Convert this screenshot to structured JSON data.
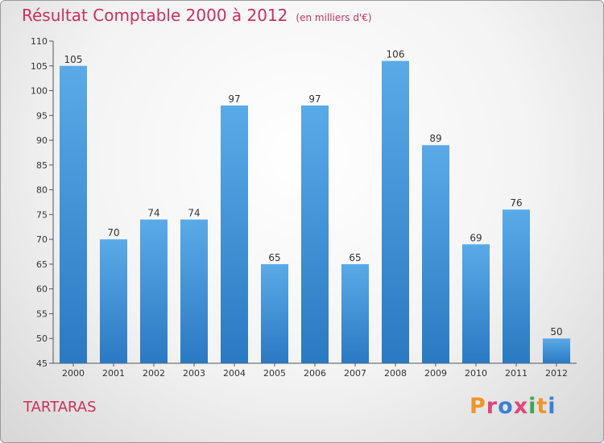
{
  "header": {
    "title": "Résultat Comptable 2000 à 2012",
    "subtitle": "(en milliers d'€)"
  },
  "footer": {
    "place": "TARTARAS",
    "logo": "Proxiti",
    "logo_colors": [
      "#f0932b",
      "#e0457b",
      "#3a7fd5",
      "#e0457b",
      "#3aa655",
      "#f0932b",
      "#3a7fd5"
    ]
  },
  "chart_data": {
    "type": "bar",
    "categories": [
      "2000",
      "2001",
      "2002",
      "2003",
      "2004",
      "2005",
      "2006",
      "2007",
      "2008",
      "2009",
      "2010",
      "2011",
      "2012"
    ],
    "values": [
      105,
      70,
      74,
      74,
      97,
      65,
      97,
      65,
      106,
      89,
      69,
      76,
      50
    ],
    "ylim": [
      45,
      110
    ],
    "yticks": [
      45,
      50,
      55,
      60,
      65,
      70,
      75,
      80,
      85,
      90,
      95,
      100,
      105,
      110
    ],
    "bar_color": "#3d8fd6",
    "grid": false
  }
}
